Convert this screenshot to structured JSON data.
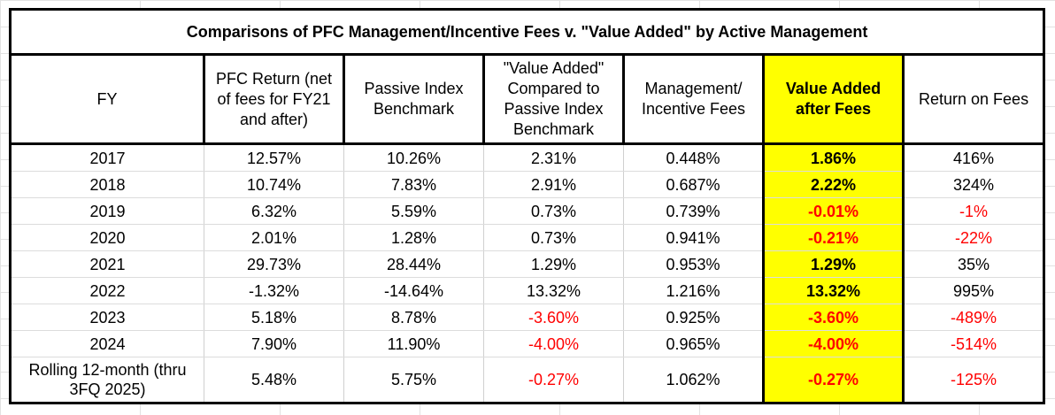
{
  "title": "Comparisons of PFC Management/Incentive Fees v. \"Value Added\" by Active Management",
  "headers": [
    "FY",
    "PFC Return (net of fees for FY21 and after)",
    "Passive Index Benchmark",
    "\"Value Added\" Compared to Passive Index Benchmark",
    "Management/ Incentive Fees",
    "Value Added after Fees",
    "Return on Fees"
  ],
  "rows": [
    [
      "2017",
      "12.57%",
      "10.26%",
      "2.31%",
      "0.448%",
      "1.86%",
      "416%"
    ],
    [
      "2018",
      "10.74%",
      "7.83%",
      "2.91%",
      "0.687%",
      "2.22%",
      "324%"
    ],
    [
      "2019",
      "6.32%",
      "5.59%",
      "0.73%",
      "0.739%",
      "-0.01%",
      "-1%"
    ],
    [
      "2020",
      "2.01%",
      "1.28%",
      "0.73%",
      "0.941%",
      "-0.21%",
      "-22%"
    ],
    [
      "2021",
      "29.73%",
      "28.44%",
      "1.29%",
      "0.953%",
      "1.29%",
      "35%"
    ],
    [
      "2022",
      "-1.32%",
      "-14.64%",
      "13.32%",
      "1.216%",
      "13.32%",
      "995%"
    ],
    [
      "2023",
      "5.18%",
      "8.78%",
      "-3.60%",
      "0.925%",
      "-3.60%",
      "-489%"
    ],
    [
      "2024",
      "7.90%",
      "11.90%",
      "-4.00%",
      "0.965%",
      "-4.00%",
      "-514%"
    ],
    [
      "Rolling 12-month (thru 3FQ 2025)",
      "5.48%",
      "5.75%",
      "-0.27%",
      "1.062%",
      "-0.27%",
      "-125%"
    ]
  ],
  "colors": {
    "highlight": "#ffff00",
    "negative": "#ff0000",
    "border": "#000000"
  }
}
